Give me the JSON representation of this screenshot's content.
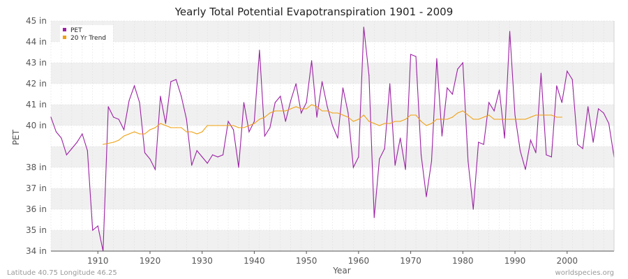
{
  "chart_data": {
    "type": "line",
    "title": "Yearly Total Potential Evapotranspiration 1901 - 2009",
    "xlabel": "Year",
    "ylabel": "PET",
    "xlim": [
      1901,
      2009
    ],
    "ylim": [
      34,
      45
    ],
    "x_ticks": [
      1910,
      1920,
      1930,
      1940,
      1950,
      1960,
      1970,
      1980,
      1990,
      2000
    ],
    "y_ticks": [
      {
        "value": 34,
        "label": "34 in"
      },
      {
        "value": 35,
        "label": "35 in"
      },
      {
        "value": 36,
        "label": "36 in"
      },
      {
        "value": 37,
        "label": "37 in"
      },
      {
        "value": 38,
        "label": "38 in"
      },
      {
        "value": 40,
        "label": "40 in"
      },
      {
        "value": 41,
        "label": "41 in"
      },
      {
        "value": 42,
        "label": "42 in"
      },
      {
        "value": 43,
        "label": "43 in"
      },
      {
        "value": 44,
        "label": "44 in"
      },
      {
        "value": 45,
        "label": "45 in"
      }
    ],
    "grid": true,
    "legend_position": "top-left",
    "series": [
      {
        "name": "PET",
        "color": "#9b1fa3",
        "x_start": 1901,
        "values": [
          40.4,
          39.7,
          39.4,
          38.6,
          38.9,
          39.2,
          39.6,
          38.8,
          35.0,
          35.2,
          34.0,
          40.9,
          40.4,
          40.3,
          39.8,
          41.2,
          41.9,
          41.1,
          38.7,
          38.4,
          37.9,
          41.4,
          40.1,
          42.1,
          42.2,
          41.4,
          40.3,
          38.1,
          38.8,
          38.5,
          38.2,
          38.6,
          38.5,
          38.6,
          40.2,
          39.8,
          38.0,
          41.1,
          39.7,
          40.2,
          43.6,
          39.5,
          39.9,
          41.1,
          41.4,
          40.2,
          41.2,
          42.0,
          40.6,
          41.1,
          43.1,
          40.4,
          42.1,
          40.9,
          40.0,
          39.4,
          41.8,
          40.6,
          38.0,
          38.5,
          44.7,
          42.4,
          35.6,
          38.4,
          38.9,
          42.0,
          38.1,
          39.4,
          37.9,
          43.4,
          43.3,
          38.6,
          36.6,
          38.3,
          43.2,
          39.5,
          41.8,
          41.5,
          42.7,
          43.0,
          38.3,
          36.0,
          39.2,
          39.1,
          41.1,
          40.7,
          41.7,
          39.4,
          44.5,
          40.5,
          38.8,
          37.9,
          39.3,
          38.7,
          42.5,
          38.6,
          38.5,
          41.9,
          41.1,
          42.6,
          42.2,
          39.1,
          38.9,
          40.9,
          39.2,
          40.8,
          40.6,
          40.1,
          38.5
        ]
      },
      {
        "name": "20 Yr Trend",
        "color": "#f0a010",
        "x_start": 1911,
        "values": [
          39.1,
          39.15,
          39.2,
          39.3,
          39.5,
          39.6,
          39.7,
          39.6,
          39.6,
          39.8,
          39.9,
          40.1,
          40.0,
          39.9,
          39.9,
          39.9,
          39.7,
          39.7,
          39.6,
          39.7,
          40.0,
          40.0,
          40.0,
          40.0,
          40.0,
          40.0,
          39.9,
          39.9,
          40.0,
          40.1,
          40.3,
          40.4,
          40.6,
          40.7,
          40.7,
          40.7,
          40.8,
          40.9,
          40.8,
          40.8,
          41.0,
          40.9,
          40.7,
          40.7,
          40.6,
          40.6,
          40.5,
          40.4,
          40.2,
          40.3,
          40.5,
          40.2,
          40.1,
          40.0,
          40.1,
          40.1,
          40.2,
          40.2,
          40.3,
          40.5,
          40.5,
          40.2,
          40.0,
          40.1,
          40.3,
          40.3,
          40.3,
          40.4,
          40.6,
          40.7,
          40.5,
          40.3,
          40.3,
          40.4,
          40.5,
          40.3,
          40.3,
          40.3,
          40.3,
          40.3,
          40.3,
          40.3,
          40.4,
          40.5,
          40.5,
          40.5,
          40.5,
          40.4,
          40.4
        ]
      }
    ]
  },
  "footer": {
    "left": "Latitude 40.75 Longitude 46.25",
    "right": "worldspecies.org"
  },
  "colors": {
    "band": "#f0f0f0",
    "grid": "#dddddd",
    "axis": "#555555"
  }
}
